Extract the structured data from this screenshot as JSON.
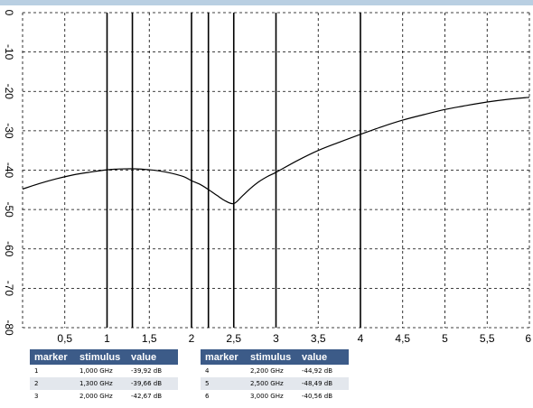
{
  "chart_data": {
    "type": "line",
    "title": "",
    "xlabel": "",
    "ylabel": "",
    "xlim": [
      0,
      6
    ],
    "ylim": [
      -80,
      0
    ],
    "x_ticks": [
      0.5,
      1,
      1.5,
      2,
      2.5,
      3,
      3.5,
      4,
      4.5,
      5,
      5.5,
      6
    ],
    "x_tick_labels": [
      "0,5",
      "1",
      "1,5",
      "2",
      "2,5",
      "3",
      "3,5",
      "4",
      "4,5",
      "5",
      "5,5",
      "6"
    ],
    "y_ticks": [
      0,
      -10,
      -20,
      -30,
      -40,
      -50,
      -60,
      -70,
      -80
    ],
    "y_tick_labels": [
      "0",
      "-10",
      "-20",
      "-30",
      "-40",
      "-50",
      "-60",
      "-70",
      "-80"
    ],
    "grid": true,
    "series": [
      {
        "x": [
          0.0,
          0.2,
          0.4,
          0.6,
          0.8,
          1.0,
          1.15,
          1.3,
          1.5,
          1.7,
          1.9,
          2.0,
          2.1,
          2.2,
          2.3,
          2.4,
          2.5,
          2.6,
          2.7,
          2.8,
          2.9,
          3.0,
          3.25,
          3.5,
          3.75,
          4.0,
          4.25,
          4.5,
          4.75,
          5.0,
          5.25,
          5.5,
          5.75,
          6.0
        ],
        "y": [
          -44.8,
          -43.4,
          -42.2,
          -41.2,
          -40.5,
          -39.92,
          -39.7,
          -39.66,
          -39.9,
          -40.5,
          -41.6,
          -42.67,
          -43.6,
          -44.92,
          -46.4,
          -47.8,
          -48.49,
          -46.6,
          -44.6,
          -42.9,
          -41.6,
          -40.56,
          -37.6,
          -35.0,
          -32.9,
          -30.9,
          -29.0,
          -27.3,
          -25.9,
          -24.6,
          -23.6,
          -22.7,
          -22.0,
          -21.5
        ]
      }
    ],
    "markers": [
      {
        "id": "1",
        "stimulus": "1,000 GHz",
        "value": "-39,92 dB",
        "x": 1.0,
        "y": -39.92
      },
      {
        "id": "2",
        "stimulus": "1,300 GHz",
        "value": "-39,66 dB",
        "x": 1.3,
        "y": -39.66
      },
      {
        "id": "3",
        "stimulus": "2,000 GHz",
        "value": "-42,67 dB",
        "x": 2.0,
        "y": -42.67
      },
      {
        "id": "4",
        "stimulus": "2,200 GHz",
        "value": "-44,92 dB",
        "x": 2.2,
        "y": -44.92
      },
      {
        "id": "5",
        "stimulus": "2,500 GHz",
        "value": "-48,49 dB",
        "x": 2.5,
        "y": -48.49
      },
      {
        "id": "6",
        "stimulus": "3,000 GHz",
        "value": "-40,56 dB",
        "x": 3.0,
        "y": -40.56
      },
      {
        "id": "",
        "stimulus": "",
        "value": "",
        "x": 4.0,
        "y": -30.9
      }
    ],
    "tables": [
      {
        "headers": {
          "marker": "marker",
          "stimulus": "stimulus",
          "value": "value"
        },
        "rows": [
          {
            "marker": "1",
            "stimulus": "1,000 GHz",
            "value": "-39,92 dB"
          },
          {
            "marker": "2",
            "stimulus": "1,300 GHz",
            "value": "-39,66 dB"
          },
          {
            "marker": "3",
            "stimulus": "2,000 GHz",
            "value": "-42,67 dB"
          }
        ]
      },
      {
        "headers": {
          "marker": "marker",
          "stimulus": "stimulus",
          "value": "value"
        },
        "rows": [
          {
            "marker": "4",
            "stimulus": "2,200 GHz",
            "value": "-44,92 dB"
          },
          {
            "marker": "5",
            "stimulus": "2,500 GHz",
            "value": "-48,49 dB"
          },
          {
            "marker": "6",
            "stimulus": "3,000 GHz",
            "value": "-40,56 dB"
          }
        ]
      }
    ]
  },
  "colors": {
    "frame": "#b9cfe2",
    "header_bg": "#3c5b88",
    "header_text": "#ffffff",
    "row_alt": "#e3e7ed",
    "grid": "#000000",
    "trace": "#000000",
    "marker_line": "#000000"
  }
}
